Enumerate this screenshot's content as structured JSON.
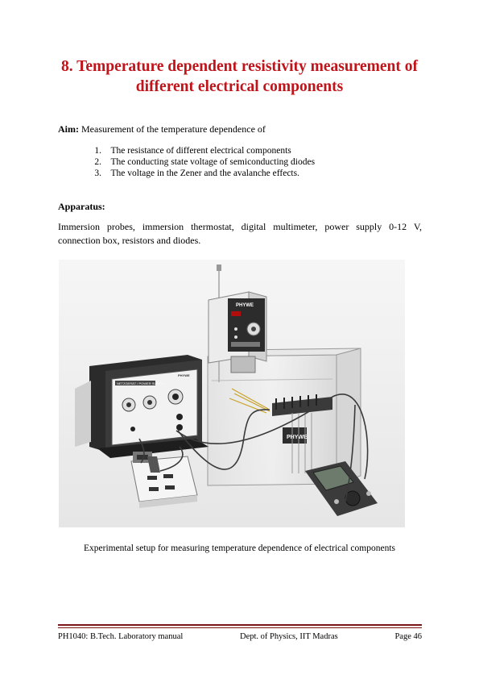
{
  "title": {
    "line1": "8. Temperature dependent resistivity measurement of",
    "line2": "different electrical components"
  },
  "aim": {
    "label": "Aim:",
    "text": " Measurement of the temperature dependence of",
    "items": [
      {
        "num": "1.",
        "text": "The resistance of different electrical components"
      },
      {
        "num": "2.",
        "text": "The conducting state voltage of semiconducting diodes"
      },
      {
        "num": "3.",
        "text": "The voltage in the Zener and the avalanche effects."
      }
    ]
  },
  "apparatus": {
    "heading": "Apparatus:",
    "text": "Immersion probes, immersion thermostat, digital multimeter, power supply 0-12 V, connection box, resistors and diodes."
  },
  "figure": {
    "power_supply_label": "NETZGERÄT / POWER SUPPLY",
    "brand_small": "PHYWE",
    "brand_thermostat": "PHYWE",
    "brand_bath": "PHYWE",
    "caption": "Experimental setup for measuring temperature dependence of electrical components"
  },
  "footer": {
    "left": "PH1040: B.Tech. Laboratory manual",
    "center": "Dept. of Physics, IIT Madras",
    "right": "Page 46"
  }
}
